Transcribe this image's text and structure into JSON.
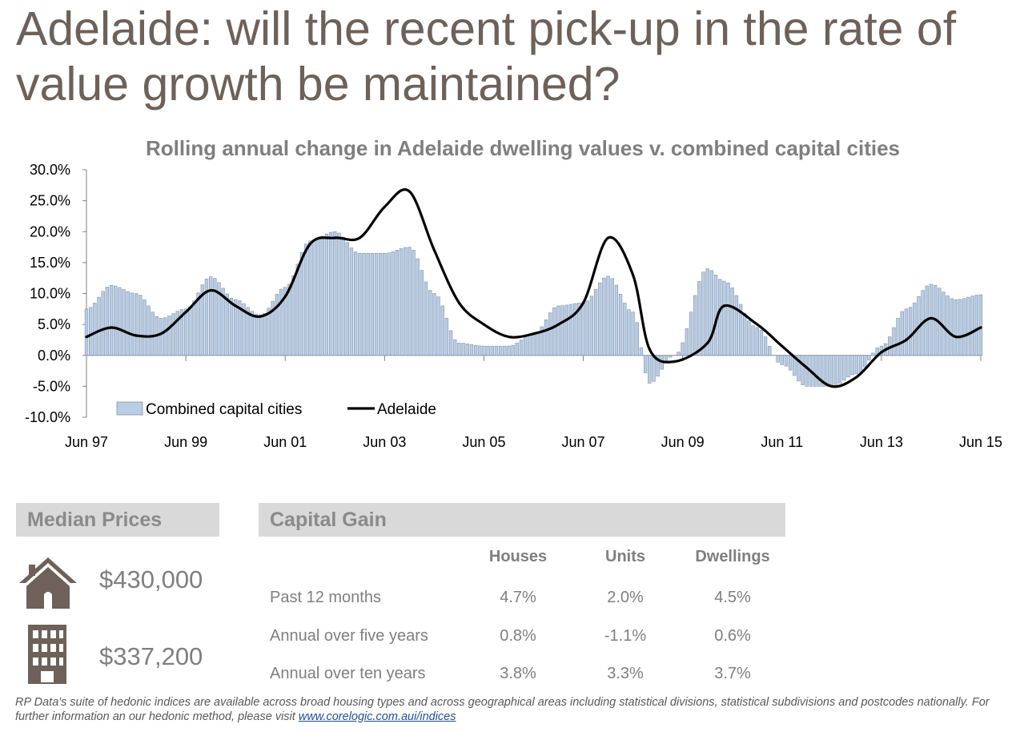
{
  "page": {
    "title": "Adelaide: will the recent pick-up in the rate of value growth be maintained?",
    "footnote_text": "RP Data's suite of hedonic indices are available across broad housing types and across geographical areas including statistical divisions, statistical subdivisions and postcodes nationally.  For further information an our hedonic method, please visit ",
    "footnote_link": "www.corelogic.com.aui/indices"
  },
  "colors": {
    "title": "#6d6159",
    "bar_fill": "#b9cde5",
    "bar_stroke": "#7f93ad",
    "line": "#000000",
    "header_bg": "#d9d9d9",
    "icon": "#6d6159"
  },
  "median_prices": {
    "header": "Median Prices",
    "items": [
      {
        "icon": "house-icon",
        "value": "$430,000"
      },
      {
        "icon": "apartment-building-icon",
        "value": "$337,200"
      }
    ]
  },
  "capital_gain": {
    "header": "Capital Gain",
    "columns": [
      "Houses",
      "Units",
      "Dwellings"
    ],
    "rows": [
      {
        "label": "Past 12 months",
        "values": [
          "4.7%",
          "2.0%",
          "4.5%"
        ]
      },
      {
        "label": "Annual over five years",
        "values": [
          "0.8%",
          "-1.1%",
          "0.6%"
        ]
      },
      {
        "label": "Annual over ten years",
        "values": [
          "3.8%",
          "3.3%",
          "3.7%"
        ]
      }
    ]
  },
  "chart_data": {
    "type": "bar+line",
    "title": "Rolling annual change in Adelaide dwelling values v. combined capital cities",
    "xlabel": "",
    "ylabel": "",
    "y_ticks": [
      "30.0%",
      "25.0%",
      "20.0%",
      "15.0%",
      "10.0%",
      "5.0%",
      "0.0%",
      "-5.0%",
      "-10.0%"
    ],
    "ylim": [
      -10,
      30
    ],
    "x_ticks": [
      "Jun 97",
      "Jun 99",
      "Jun 01",
      "Jun 03",
      "Jun 05",
      "Jun 07",
      "Jun 09",
      "Jun 11",
      "Jun 13",
      "Jun 15"
    ],
    "x_start": "Jun 97",
    "x_end": "Jun 15",
    "legend": "bottom-left",
    "series": [
      {
        "name": "Combined capital cities",
        "type": "bar",
        "x": [
          "Jun 97",
          "Dec 97",
          "Jun 98",
          "Dec 98",
          "Jun 99",
          "Dec 99",
          "Jun 00",
          "Dec 00",
          "Jun 01",
          "Dec 01",
          "Jun 02",
          "Dec 02",
          "Jun 03",
          "Dec 03",
          "Jun 04",
          "Dec 04",
          "Jun 05",
          "Dec 05",
          "Jun 06",
          "Dec 06",
          "Jun 07",
          "Dec 07",
          "Jun 08",
          "Oct 08",
          "Apr 09",
          "Dec 09",
          "Apr 10",
          "Dec 10",
          "Jun 11",
          "Dec 11",
          "Jun 12",
          "Dec 12",
          "Jun 13",
          "Dec 13",
          "Jun 14",
          "Dec 14",
          "Jun 15"
        ],
        "values": [
          7.5,
          11.3,
          10.0,
          6.0,
          7.5,
          12.7,
          9.0,
          6.5,
          11.0,
          18.5,
          20.0,
          16.5,
          16.5,
          17.5,
          10.0,
          2.0,
          1.5,
          1.5,
          3.5,
          8.0,
          8.5,
          12.8,
          7.0,
          -4.5,
          0.0,
          14.0,
          12.0,
          4.5,
          -1.5,
          -5.0,
          -5.0,
          -3.0,
          1.5,
          7.5,
          11.5,
          9.0,
          9.8
        ]
      },
      {
        "name": "Adelaide",
        "type": "line",
        "x": [
          "Jun 97",
          "Dec 97",
          "Jun 98",
          "Dec 98",
          "Jun 99",
          "Dec 99",
          "Jun 00",
          "Dec 00",
          "Jun 01",
          "Dec 01",
          "Jun 02",
          "Dec 02",
          "Jun 03",
          "Dec 03",
          "Jun 04",
          "Dec 04",
          "Jun 05",
          "Dec 05",
          "Jun 06",
          "Dec 06",
          "Jun 07",
          "Dec 07",
          "Jun 08",
          "Oct 08",
          "Apr 09",
          "Dec 09",
          "Apr 10",
          "Dec 10",
          "Jun 11",
          "Dec 11",
          "Jun 12",
          "Dec 12",
          "Jun 13",
          "Dec 13",
          "Jun 14",
          "Dec 14",
          "Jun 15"
        ],
        "values": [
          3.0,
          4.5,
          3.2,
          3.5,
          7.0,
          10.5,
          8.0,
          6.3,
          9.5,
          18.0,
          19.0,
          19.0,
          24.0,
          26.5,
          17.0,
          8.5,
          5.0,
          3.0,
          3.5,
          5.0,
          8.5,
          19.0,
          13.0,
          1.0,
          -1.0,
          2.0,
          8.0,
          5.0,
          1.5,
          -2.0,
          -5.0,
          -3.5,
          0.5,
          2.5,
          6.0,
          3.0,
          4.5
        ]
      }
    ]
  }
}
